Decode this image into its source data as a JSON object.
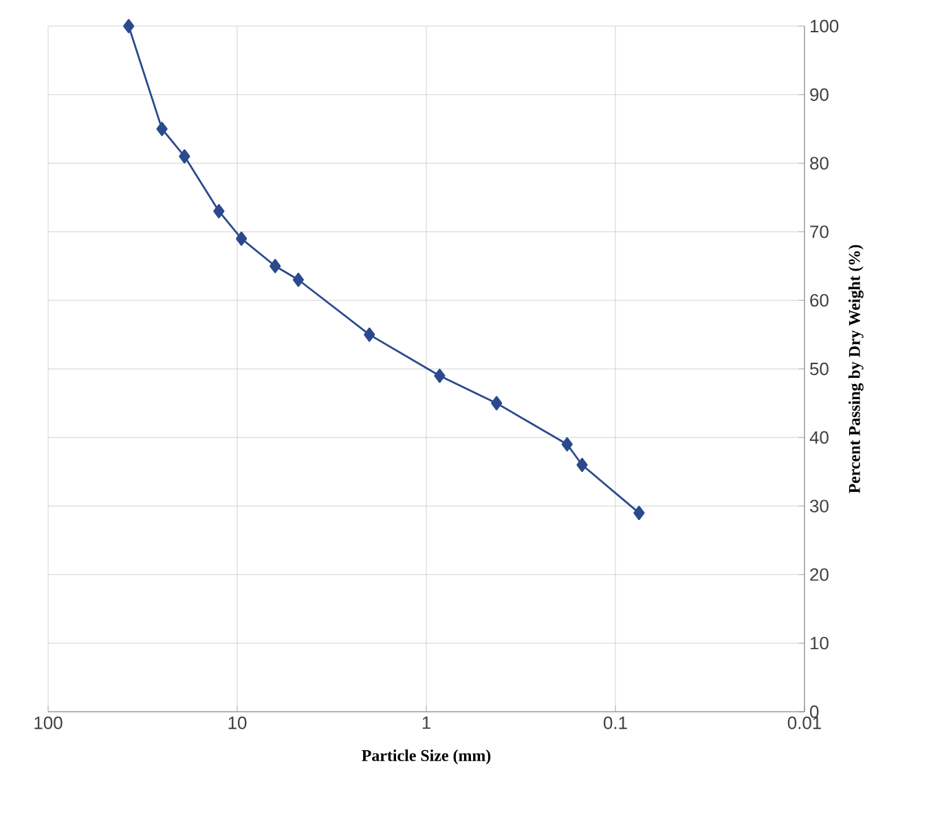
{
  "chart_data": {
    "type": "line",
    "xlabel": "Particle Size (mm)",
    "ylabel": "Percent Passing by Dry Weight (%)",
    "x": [
      37.5,
      25,
      19,
      12.5,
      9.5,
      6.3,
      4.75,
      2,
      0.85,
      0.425,
      0.18,
      0.15,
      0.075
    ],
    "series": [
      {
        "color": "#2b4a8e",
        "values": [
          100,
          85,
          81,
          73,
          69,
          65,
          63,
          55,
          49,
          45,
          39,
          36,
          29
        ]
      }
    ],
    "log": "x",
    "xlim": [
      100,
      0.01
    ],
    "xticks": [
      100,
      10,
      1,
      0.1,
      0.01
    ],
    "ylim": [
      0,
      100
    ],
    "yticks": [
      0,
      10,
      20,
      30,
      40,
      50,
      60,
      70,
      80,
      90,
      100
    ],
    "grid": true,
    "marker": "diamond",
    "line_style": "solid"
  }
}
